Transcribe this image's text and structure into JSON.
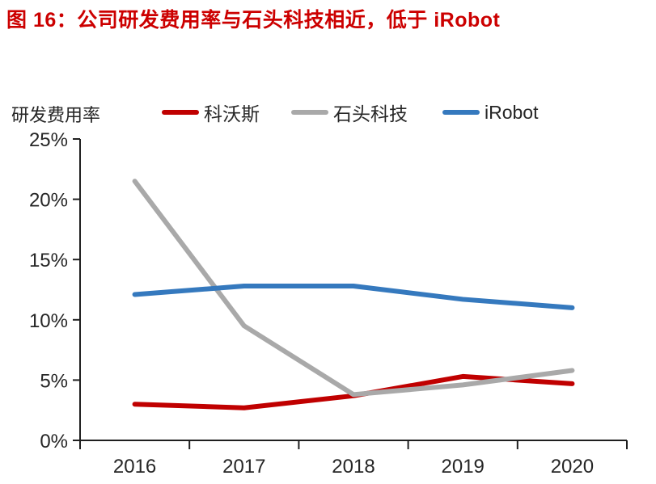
{
  "title": "图 16：公司研发费用率与石头科技相近，低于 iRobot",
  "colors": {
    "title_red": "#cc0000",
    "axis": "#1f1f1f",
    "tick_text": "#262626"
  },
  "chart_data": {
    "type": "line",
    "title": "图 16：公司研发费用率与石头科技相近，低于 iRobot",
    "axis_label": "研发费用率",
    "categories": [
      "2016",
      "2017",
      "2018",
      "2019",
      "2020"
    ],
    "series": [
      {
        "name": "科沃斯",
        "color": "#c00000",
        "values": [
          3.0,
          2.7,
          3.7,
          5.3,
          4.7
        ]
      },
      {
        "name": "石头科技",
        "color": "#a9a9a9",
        "values": [
          21.5,
          9.5,
          3.8,
          4.6,
          5.8
        ]
      },
      {
        "name": "iRobot",
        "color": "#3579be",
        "values": [
          12.1,
          12.8,
          12.8,
          11.7,
          11.0
        ]
      }
    ],
    "ylim": [
      0,
      25
    ],
    "yticks": [
      {
        "value": 0,
        "label": "0%"
      },
      {
        "value": 5,
        "label": "5%"
      },
      {
        "value": 10,
        "label": "10%"
      },
      {
        "value": 15,
        "label": "15%"
      },
      {
        "value": 20,
        "label": "20%"
      },
      {
        "value": 25,
        "label": "25%"
      }
    ],
    "legend_position": "top",
    "grid": false
  }
}
